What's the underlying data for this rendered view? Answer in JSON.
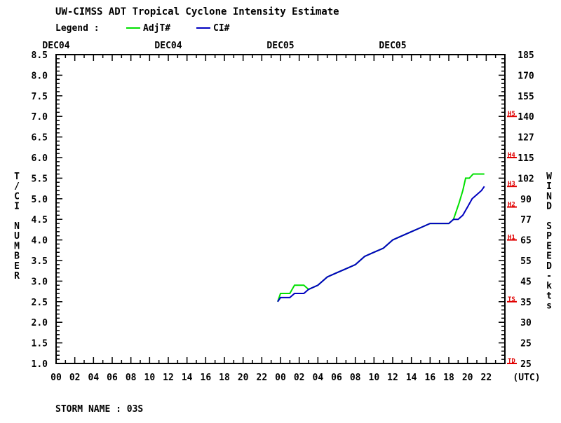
{
  "header": {
    "title": "UW-CIMSS ADT Tropical Cyclone Intensity Estimate",
    "legend_label": "Legend :",
    "storm_name": "STORM NAME : 03S"
  },
  "chart_data": {
    "type": "line",
    "title": "UW-CIMSS ADT Tropical Cyclone Intensity Estimate",
    "ylabel": "T/CI NUMBER",
    "y2label": "WIND SPEED-kts",
    "xlabel": "(UTC)",
    "ylim": [
      1.0,
      8.5
    ],
    "xlim": [
      0,
      48
    ],
    "x_unit": "hours from 00 UTC DEC04",
    "x_tick_labels": [
      "00",
      "02",
      "04",
      "06",
      "08",
      "10",
      "12",
      "14",
      "16",
      "18",
      "20",
      "22",
      "00",
      "02",
      "04",
      "06",
      "08",
      "10",
      "12",
      "14",
      "16",
      "18",
      "20",
      "22"
    ],
    "date_labels": [
      {
        "text": "DEC04",
        "hour": 0
      },
      {
        "text": "DEC04",
        "hour": 12
      },
      {
        "text": "DEC05",
        "hour": 24
      },
      {
        "text": "DEC05",
        "hour": 36
      }
    ],
    "y_ticks": [
      "1.0",
      "1.5",
      "2.0",
      "2.5",
      "3.0",
      "3.5",
      "4.0",
      "4.5",
      "5.0",
      "5.5",
      "6.0",
      "6.5",
      "7.0",
      "7.5",
      "8.0",
      "8.5"
    ],
    "wind_ticks": [
      {
        "ci": 1.0,
        "label": "25"
      },
      {
        "ci": 1.5,
        "label": "25"
      },
      {
        "ci": 2.0,
        "label": "30"
      },
      {
        "ci": 2.5,
        "label": "35"
      },
      {
        "ci": 3.0,
        "label": "45"
      },
      {
        "ci": 3.5,
        "label": "55"
      },
      {
        "ci": 4.0,
        "label": "65"
      },
      {
        "ci": 4.5,
        "label": "77"
      },
      {
        "ci": 5.0,
        "label": "90"
      },
      {
        "ci": 5.5,
        "label": "102"
      },
      {
        "ci": 6.0,
        "label": "115"
      },
      {
        "ci": 6.5,
        "label": "127"
      },
      {
        "ci": 7.0,
        "label": "140"
      },
      {
        "ci": 7.5,
        "label": "155"
      },
      {
        "ci": 8.0,
        "label": "170"
      },
      {
        "ci": 8.5,
        "label": "185"
      }
    ],
    "categories": [
      {
        "label": "TD",
        "ci": 1.0
      },
      {
        "label": "TS",
        "ci": 2.5
      },
      {
        "label": "H1",
        "ci": 4.0
      },
      {
        "label": "H2",
        "ci": 4.8
      },
      {
        "label": "H3",
        "ci": 5.3
      },
      {
        "label": "H4",
        "ci": 6.0
      },
      {
        "label": "H5",
        "ci": 7.0
      }
    ],
    "grid": false,
    "legend_position": "top-left",
    "series": [
      {
        "name": "AdjT#",
        "color": "#00e000",
        "x": [
          23.7,
          24.0,
          24.5,
          25.0,
          25.5,
          26.0,
          26.5,
          27.0,
          28.0,
          29.0,
          30.0,
          31.0,
          32.0,
          33.0,
          34.0,
          35.0,
          36.0,
          37.0,
          38.0,
          39.0,
          40.0,
          41.0,
          42.0,
          42.5,
          42.8,
          43.1,
          43.5,
          43.8,
          44.2,
          44.6,
          45.0,
          45.5,
          45.8
        ],
        "y": [
          2.5,
          2.7,
          2.7,
          2.7,
          2.9,
          2.9,
          2.9,
          2.8,
          2.9,
          3.1,
          3.2,
          3.3,
          3.4,
          3.6,
          3.7,
          3.8,
          4.0,
          4.1,
          4.2,
          4.3,
          4.4,
          4.4,
          4.4,
          4.5,
          4.7,
          4.9,
          5.2,
          5.5,
          5.5,
          5.6,
          5.6,
          5.6,
          5.6
        ]
      },
      {
        "name": "CI#",
        "color": "#0000c0",
        "x": [
          23.7,
          24.0,
          24.5,
          25.0,
          25.5,
          26.0,
          26.5,
          27.0,
          28.0,
          29.0,
          30.0,
          31.0,
          32.0,
          33.0,
          34.0,
          35.0,
          36.0,
          37.0,
          38.0,
          39.0,
          40.0,
          41.0,
          42.0,
          42.5,
          43.0,
          43.5,
          44.0,
          44.5,
          45.0,
          45.5,
          45.8
        ],
        "y": [
          2.5,
          2.6,
          2.6,
          2.6,
          2.7,
          2.7,
          2.7,
          2.8,
          2.9,
          3.1,
          3.2,
          3.3,
          3.4,
          3.6,
          3.7,
          3.8,
          4.0,
          4.1,
          4.2,
          4.3,
          4.4,
          4.4,
          4.4,
          4.5,
          4.5,
          4.6,
          4.8,
          5.0,
          5.1,
          5.2,
          5.3
        ]
      }
    ]
  }
}
